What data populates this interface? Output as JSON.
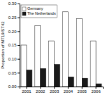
{
  "chart_data": {
    "type": "bar",
    "categories": [
      "2001",
      "2002",
      "2003",
      "2004",
      "2005",
      "2006"
    ],
    "series": [
      {
        "name": "Germany",
        "color": "#ffffff",
        "values": [
          0.15,
          0.22,
          0.165,
          0.27,
          0.245,
          0.165
        ]
      },
      {
        "name": "The Netherlands",
        "color": "#1a1a1a",
        "values": [
          0.06,
          0.065,
          0.08,
          0.035,
          0.03,
          0.01
        ]
      }
    ],
    "ylabel": "Proportion of MT19/ST42",
    "ylim": [
      0.0,
      0.3
    ],
    "yticks": [
      {
        "value": 0.0,
        "label": "0.00"
      },
      {
        "value": 0.05,
        "label": "0.05"
      },
      {
        "value": 0.1,
        "label": "0.10"
      },
      {
        "value": 0.15,
        "label": "0.15"
      },
      {
        "value": 0.2,
        "label": "0.20"
      },
      {
        "value": 0.25,
        "label": "0.25"
      },
      {
        "value": 0.3,
        "label": "0.30"
      }
    ],
    "grid": false,
    "legend": "upper left"
  }
}
